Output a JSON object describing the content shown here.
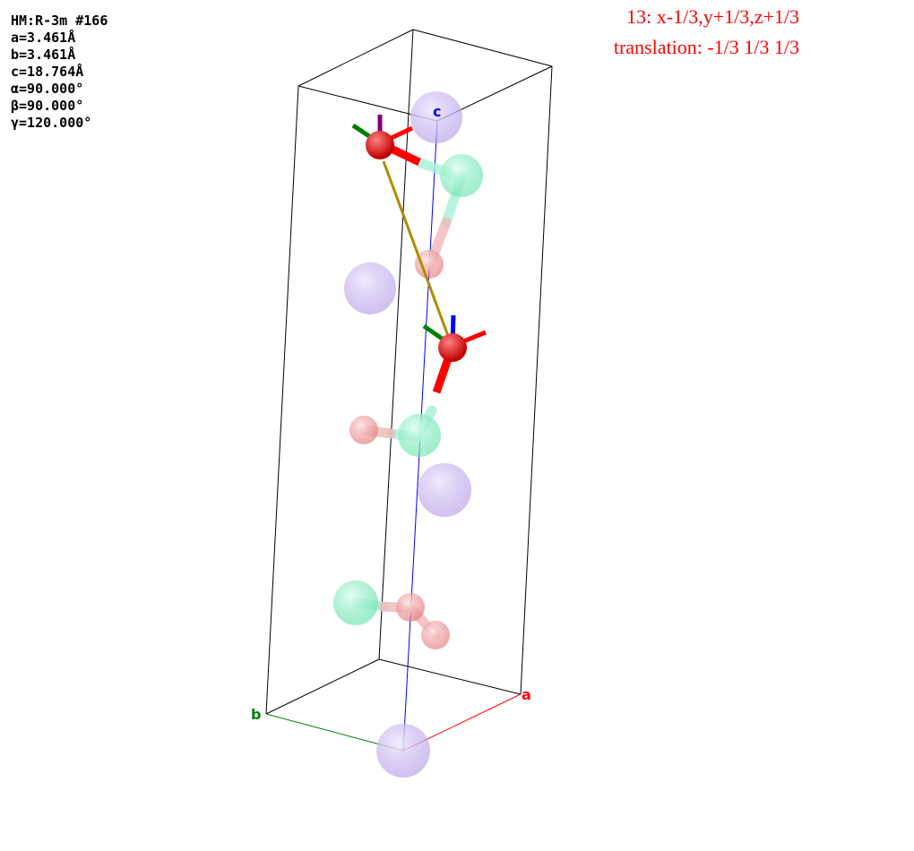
{
  "cell": {
    "spacegroup": "HM:R-3m #166",
    "a": "a=3.461Å",
    "b": "b=3.461Å",
    "c": "c=18.764Å",
    "alpha": "α=90.000°",
    "beta": "β=90.000°",
    "gamma": "γ=120.000°"
  },
  "symmetry": {
    "operation": "13: x-1/3,y+1/3,z+1/3",
    "translation": "translation: -1/3 1/3 1/3"
  },
  "axes": {
    "a": {
      "label": "a",
      "color": "#ff0000"
    },
    "b": {
      "label": "b",
      "color": "#008000"
    },
    "c": {
      "label": "c",
      "color": "#0000ff"
    }
  },
  "colors": {
    "large_atom": "#c8b4f0",
    "green_atom": "#7ff0c0",
    "pink_atom": "#f0a0a0",
    "highlight_atom": "#ff0000",
    "bond": "#b08c00",
    "arrow_red": "#ff0000",
    "arrow_green": "#008000",
    "arrow_blue": "#0000ff",
    "arrow_purple": "#800080"
  }
}
